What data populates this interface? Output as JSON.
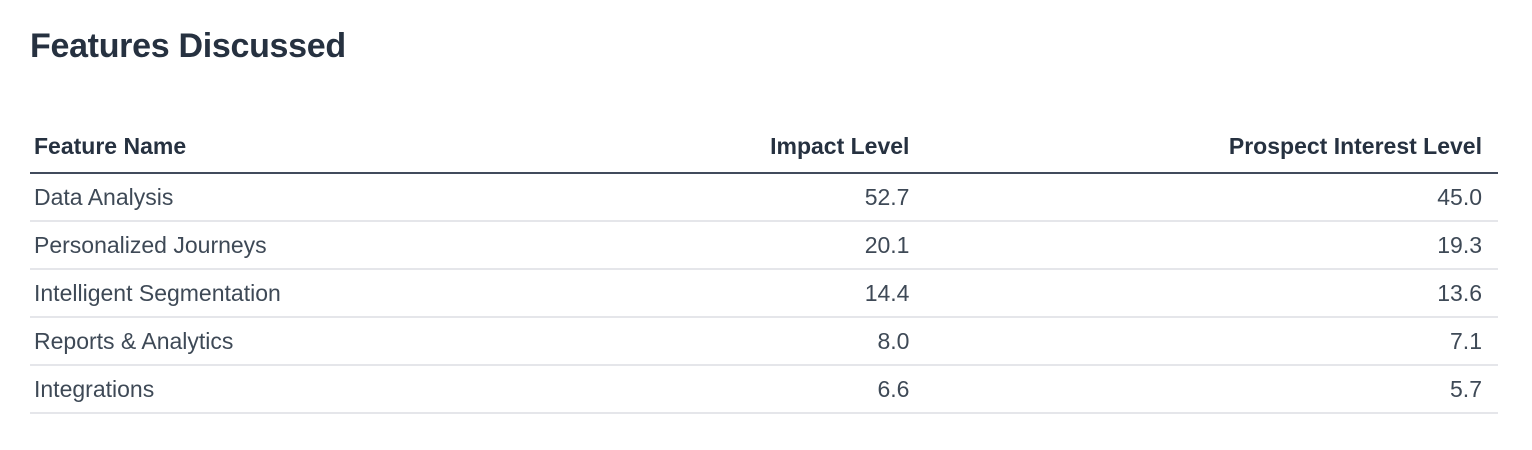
{
  "page": {
    "title": "Features Discussed"
  },
  "colors": {
    "background": "#ffffff",
    "title_text": "#263140",
    "header_text": "#263140",
    "body_text": "#3e4956",
    "header_rule": "#414b5c",
    "row_divider": "#e5e6ea"
  },
  "table": {
    "columns": [
      {
        "label": "Feature Name",
        "align": "left"
      },
      {
        "label": "Impact Level",
        "align": "right"
      },
      {
        "label": "Prospect Interest Level",
        "align": "right"
      }
    ],
    "rows": [
      {
        "feature": "Data Analysis",
        "impact": "52.7",
        "interest": "45.0"
      },
      {
        "feature": "Personalized Journeys",
        "impact": "20.1",
        "interest": "19.3"
      },
      {
        "feature": "Intelligent Segmentation",
        "impact": "14.4",
        "interest": "13.6"
      },
      {
        "feature": "Reports & Analytics",
        "impact": "8.0",
        "interest": "7.1"
      },
      {
        "feature": "Integrations",
        "impact": "6.6",
        "interest": "5.7"
      }
    ]
  },
  "chart_data": {
    "type": "table",
    "title": "Features Discussed",
    "columns": [
      "Feature Name",
      "Impact Level",
      "Prospect Interest Level"
    ],
    "categories": [
      "Data Analysis",
      "Personalized Journeys",
      "Intelligent Segmentation",
      "Reports & Analytics",
      "Integrations"
    ],
    "series": [
      {
        "name": "Impact Level",
        "values": [
          52.7,
          20.1,
          14.4,
          8.0,
          6.6
        ]
      },
      {
        "name": "Prospect Interest Level",
        "values": [
          45.0,
          19.3,
          13.6,
          7.1,
          5.7
        ]
      }
    ],
    "layout": {
      "numeric_columns_right_aligned": true,
      "grid": "horizontal-row-dividers"
    }
  }
}
